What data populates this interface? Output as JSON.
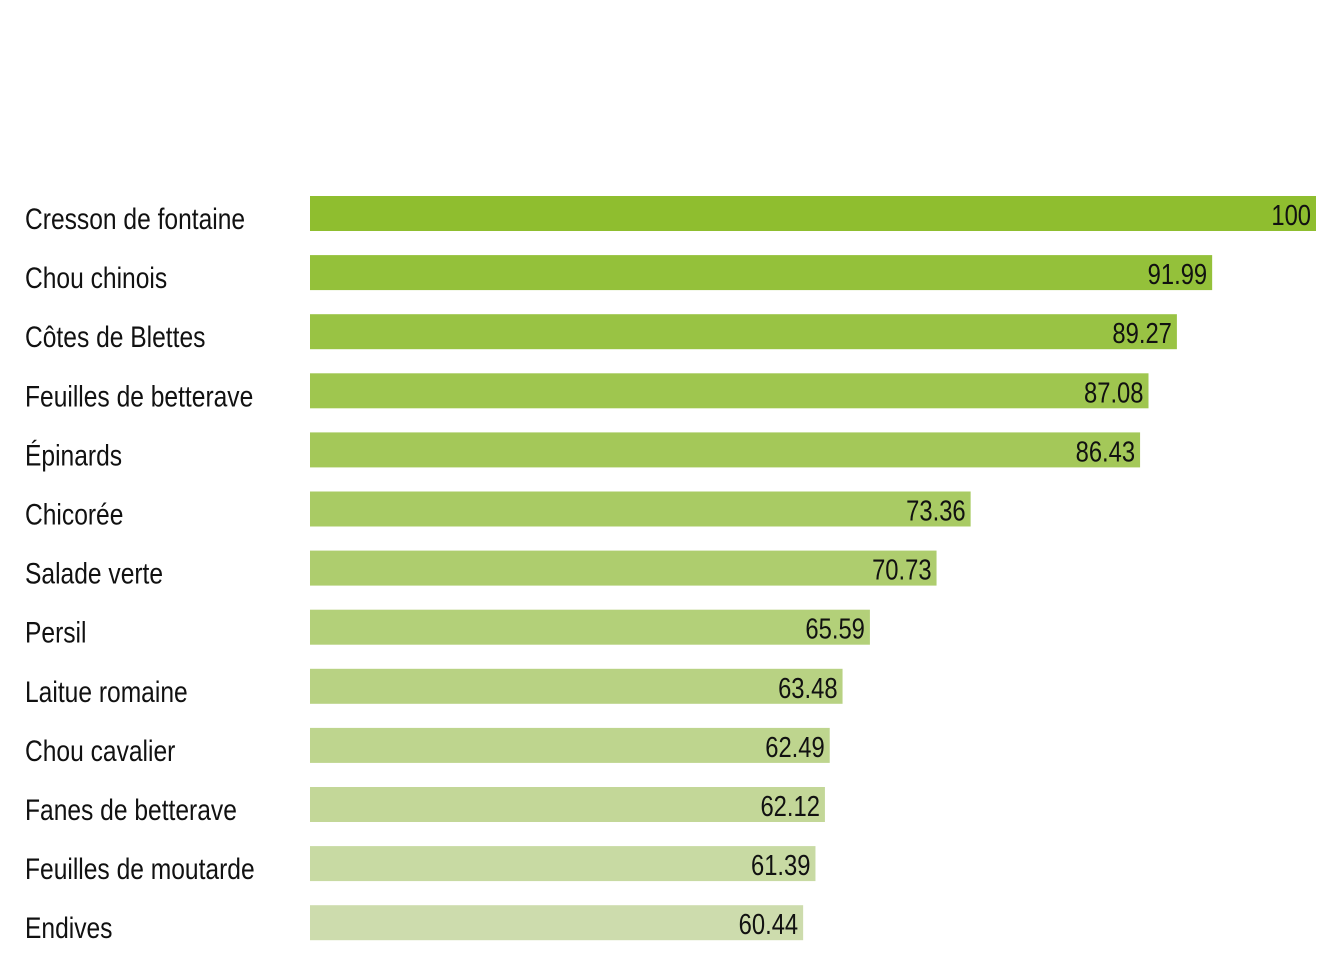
{
  "chart_data": {
    "type": "bar",
    "orientation": "horizontal",
    "title": "",
    "xlabel": "",
    "ylabel": "",
    "categories": [
      "Cresson de fontaine",
      "Chou chinois",
      "Côtes de Blettes",
      "Feuilles de betterave",
      "Épinards",
      "Chicorée",
      "Salade verte",
      "Persil",
      "Laitue romaine",
      "Chou cavalier",
      "Fanes de betterave",
      "Feuilles de moutarde",
      "Endives"
    ],
    "values": [
      100,
      91.99,
      89.27,
      87.08,
      86.43,
      73.36,
      70.73,
      65.59,
      63.48,
      62.49,
      62.12,
      61.39,
      60.44
    ],
    "value_labels": [
      "100",
      "91.99",
      "89.27",
      "87.08",
      "86.43",
      "73.36",
      "70.73",
      "65.59",
      "63.48",
      "62.49",
      "62.12",
      "61.39",
      "60.44"
    ],
    "xlim": [
      22.4,
      100
    ],
    "grid": false,
    "legend": "none",
    "colors": {
      "first": "#8fbe2f",
      "last": "#cddcad"
    }
  }
}
